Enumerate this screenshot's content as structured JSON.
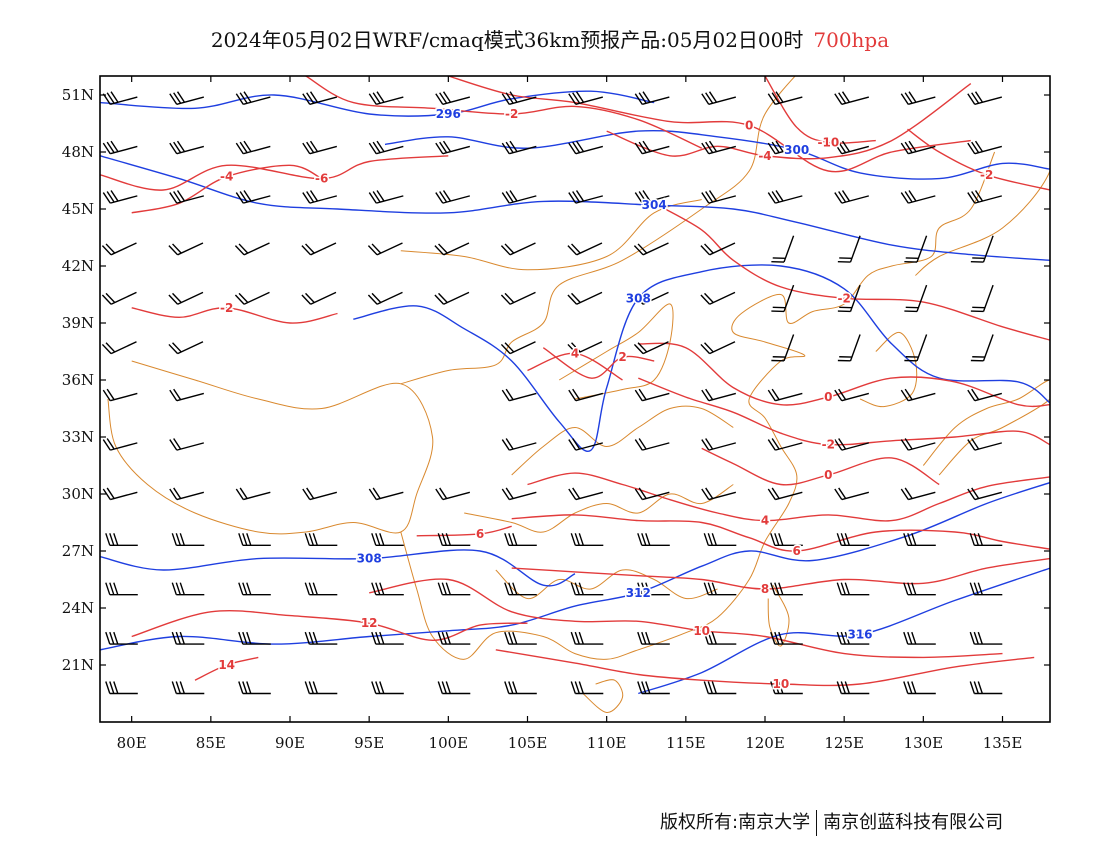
{
  "title": {
    "main": "2024年05月02日WRF/cmaq模式36km预报产品:05月02日00时",
    "level": "700hpa"
  },
  "colors": {
    "height_contour": "#1f3fe0",
    "temperature_contour": "#e23b3b",
    "boundary": "#d9892f",
    "wind_barb": "#000000",
    "frame": "#000000"
  },
  "map": {
    "projection": "lat-lon",
    "lon_range": [
      78,
      138
    ],
    "lat_range": [
      18,
      52
    ],
    "lon_ticks": [
      "80E",
      "85E",
      "90E",
      "95E",
      "100E",
      "105E",
      "110E",
      "115E",
      "120E",
      "125E",
      "130E",
      "135E"
    ],
    "lat_ticks": [
      "51N",
      "48N",
      "45N",
      "42N",
      "39N",
      "36N",
      "33N",
      "30N",
      "27N",
      "24N",
      "21N"
    ]
  },
  "height_contours": {
    "name": "geopotential height",
    "lines": [
      {
        "label": "296",
        "points": [
          [
            78,
            50.6
          ],
          [
            84,
            50.3
          ],
          [
            89,
            51.0
          ],
          [
            95,
            50.0
          ],
          [
            100,
            50.0
          ],
          [
            104,
            50.8
          ],
          [
            109,
            51.2
          ],
          [
            113,
            50.6
          ]
        ]
      },
      {
        "label": "300",
        "points": [
          [
            96,
            48.4
          ],
          [
            100,
            48.8
          ],
          [
            105,
            48.2
          ],
          [
            112,
            49.1
          ],
          [
            117,
            48.8
          ],
          [
            122,
            48.1
          ],
          [
            126,
            46.9
          ],
          [
            131,
            46.6
          ],
          [
            135,
            47.4
          ],
          [
            138,
            47.1
          ]
        ]
      },
      {
        "label": "304",
        "points": [
          [
            78,
            47.8
          ],
          [
            83,
            46.6
          ],
          [
            88,
            45.3
          ],
          [
            93,
            45.0
          ],
          [
            100,
            44.8
          ],
          [
            106,
            45.4
          ],
          [
            113,
            45.2
          ],
          [
            118,
            45.0
          ],
          [
            122,
            44.3
          ],
          [
            128,
            43.1
          ],
          [
            133,
            42.6
          ],
          [
            138,
            42.3
          ]
        ]
      },
      {
        "label": "308",
        "points": [
          [
            94,
            39.2
          ],
          [
            98,
            39.9
          ],
          [
            101,
            38.7
          ],
          [
            104,
            37.0
          ],
          [
            107,
            33.8
          ],
          [
            109,
            32.3
          ],
          [
            110,
            35.6
          ],
          [
            112,
            40.3
          ],
          [
            116,
            41.7
          ],
          [
            121,
            42.0
          ],
          [
            125,
            40.8
          ],
          [
            128,
            37.9
          ],
          [
            131,
            36.1
          ],
          [
            136,
            35.9
          ],
          [
            138,
            34.8
          ]
        ]
      },
      {
        "label": "308",
        "points": [
          [
            78,
            26.7
          ],
          [
            82,
            26.0
          ],
          [
            88,
            26.6
          ],
          [
            95,
            26.6
          ],
          [
            102,
            27.0
          ],
          [
            106,
            25.2
          ],
          [
            108,
            25.8
          ]
        ]
      },
      {
        "label": "312",
        "points": [
          [
            78,
            21.8
          ],
          [
            83,
            22.5
          ],
          [
            89,
            22.1
          ],
          [
            95,
            22.5
          ],
          [
            100,
            22.8
          ],
          [
            104,
            23.1
          ],
          [
            108,
            24.1
          ],
          [
            112,
            24.8
          ],
          [
            116,
            26.2
          ],
          [
            119,
            27.0
          ],
          [
            123,
            26.5
          ],
          [
            129,
            27.8
          ],
          [
            134,
            29.5
          ],
          [
            138,
            30.6
          ]
        ]
      },
      {
        "label": "316",
        "points": [
          [
            112,
            19.5
          ],
          [
            116,
            20.6
          ],
          [
            121,
            22.6
          ],
          [
            126,
            22.6
          ],
          [
            132,
            24.4
          ],
          [
            138,
            26.1
          ]
        ]
      }
    ]
  },
  "temperature_contours": {
    "name": "temperature",
    "lines": [
      {
        "label": "-10",
        "points": [
          [
            120,
            52
          ],
          [
            122,
            49.3
          ],
          [
            124,
            48.5
          ],
          [
            127,
            48.6
          ]
        ]
      },
      {
        "label": "-6",
        "points": [
          [
            78,
            46.8
          ],
          [
            82,
            46.0
          ],
          [
            86,
            47.3
          ],
          [
            92,
            46.6
          ],
          [
            95,
            47.5
          ],
          [
            100,
            47.8
          ]
        ]
      },
      {
        "label": "-4",
        "points": [
          [
            80,
            44.8
          ],
          [
            83,
            45.3
          ],
          [
            86,
            46.7
          ],
          [
            90,
            47.3
          ],
          [
            92,
            46.6
          ]
        ]
      },
      {
        "label": "-4",
        "points": [
          [
            110,
            49.1
          ],
          [
            114,
            47.8
          ],
          [
            117,
            48.3
          ],
          [
            120,
            47.8
          ],
          [
            124,
            47.7
          ],
          [
            128,
            48.6
          ],
          [
            133,
            51.6
          ]
        ]
      },
      {
        "label": "-2",
        "points": [
          [
            91,
            52
          ],
          [
            94,
            50.6
          ],
          [
            99,
            50.3
          ],
          [
            104,
            50.0
          ],
          [
            108,
            50.4
          ],
          [
            112,
            49.7
          ],
          [
            116,
            48.2
          ]
        ]
      },
      {
        "label": "-2",
        "points": [
          [
            129,
            49.2
          ],
          [
            131,
            48.0
          ],
          [
            134,
            46.8
          ],
          [
            138,
            46.0
          ]
        ]
      },
      {
        "label": "0",
        "points": [
          [
            100,
            52
          ],
          [
            104,
            51.0
          ],
          [
            108,
            50.6
          ],
          [
            114,
            49.6
          ],
          [
            119,
            49.4
          ],
          [
            124,
            47.0
          ],
          [
            128,
            48.0
          ],
          [
            133,
            48.6
          ]
        ]
      },
      {
        "label": "-2",
        "points": [
          [
            113,
            45.3
          ],
          [
            116,
            43.9
          ],
          [
            118,
            42.3
          ],
          [
            121,
            40.9
          ],
          [
            125,
            40.3
          ],
          [
            130,
            40.1
          ],
          [
            135,
            38.8
          ],
          [
            138,
            38.1
          ]
        ]
      },
      {
        "label": "-2",
        "points": [
          [
            80,
            39.8
          ],
          [
            83,
            39.3
          ],
          [
            86,
            39.8
          ],
          [
            90,
            39.0
          ],
          [
            93,
            39.5
          ]
        ]
      },
      {
        "label": "2",
        "points": [
          [
            106,
            37.7
          ],
          [
            109,
            36.1
          ],
          [
            111,
            37.2
          ],
          [
            113,
            37.0
          ]
        ]
      },
      {
        "label": "0",
        "points": [
          [
            112,
            37.9
          ],
          [
            115,
            37.7
          ],
          [
            118,
            35.6
          ],
          [
            121,
            34.7
          ],
          [
            124,
            35.1
          ],
          [
            128,
            36.1
          ],
          [
            132,
            35.9
          ],
          [
            136,
            34.7
          ],
          [
            138,
            34.7
          ]
        ]
      },
      {
        "label": "-2",
        "points": [
          [
            112,
            36.1
          ],
          [
            115,
            35.1
          ],
          [
            118,
            34.3
          ],
          [
            121,
            33.2
          ],
          [
            124,
            32.6
          ],
          [
            128,
            32.8
          ],
          [
            132,
            33.0
          ],
          [
            136,
            33.3
          ],
          [
            138,
            32.6
          ]
        ]
      },
      {
        "label": "0",
        "points": [
          [
            116,
            32.4
          ],
          [
            118,
            31.6
          ],
          [
            121,
            30.5
          ],
          [
            124,
            31.0
          ],
          [
            128,
            31.9
          ],
          [
            131,
            30.5
          ]
        ]
      },
      {
        "label": "4",
        "points": [
          [
            105,
            36.5
          ],
          [
            108,
            37.4
          ],
          [
            111,
            36.0
          ]
        ]
      },
      {
        "label": "4",
        "points": [
          [
            105,
            30.5
          ],
          [
            108,
            31.1
          ],
          [
            111,
            30.5
          ],
          [
            114,
            29.7
          ],
          [
            117,
            29.0
          ],
          [
            120,
            28.6
          ],
          [
            124,
            28.9
          ],
          [
            128,
            28.6
          ],
          [
            131,
            29.5
          ],
          [
            134,
            30.4
          ],
          [
            138,
            30.9
          ]
        ]
      },
      {
        "label": "6",
        "points": [
          [
            104,
            28.7
          ],
          [
            108,
            28.9
          ],
          [
            112,
            28.6
          ],
          [
            116,
            28.5
          ],
          [
            119,
            27.7
          ],
          [
            122,
            27.0
          ],
          [
            127,
            28.0
          ],
          [
            132,
            28.0
          ],
          [
            135,
            27.5
          ],
          [
            138,
            27.1
          ]
        ]
      },
      {
        "label": "6",
        "points": [
          [
            98,
            27.8
          ],
          [
            102,
            27.9
          ],
          [
            104,
            28.3
          ]
        ]
      },
      {
        "label": "8",
        "points": [
          [
            104,
            26.1
          ],
          [
            108,
            25.9
          ],
          [
            112,
            25.7
          ],
          [
            116,
            25.5
          ],
          [
            120,
            25.0
          ],
          [
            125,
            25.5
          ],
          [
            130,
            25.3
          ],
          [
            134,
            26.1
          ],
          [
            138,
            26.6
          ]
        ]
      },
      {
        "label": "10",
        "points": [
          [
            95,
            24.8
          ],
          [
            100,
            25.5
          ],
          [
            104,
            23.8
          ],
          [
            108,
            23.3
          ],
          [
            112,
            23.3
          ],
          [
            116,
            22.8
          ],
          [
            120,
            22.5
          ],
          [
            125,
            21.6
          ],
          [
            130,
            21.4
          ],
          [
            135,
            21.6
          ]
        ]
      },
      {
        "label": "12",
        "points": [
          [
            80,
            22.5
          ],
          [
            85,
            23.8
          ],
          [
            90,
            23.6
          ],
          [
            95,
            23.2
          ],
          [
            99,
            22.3
          ],
          [
            102,
            23.1
          ],
          [
            105,
            23.2
          ]
        ]
      },
      {
        "label": "10",
        "points": [
          [
            103,
            21.8
          ],
          [
            108,
            21.1
          ],
          [
            112,
            20.5
          ],
          [
            116,
            20.2
          ],
          [
            121,
            20.0
          ],
          [
            126,
            20.0
          ],
          [
            132,
            20.9
          ],
          [
            137,
            21.4
          ]
        ]
      },
      {
        "label": "14",
        "points": [
          [
            84,
            20.2
          ],
          [
            86,
            21.0
          ],
          [
            88,
            21.4
          ]
        ]
      }
    ]
  },
  "credit": {
    "owner_prefix": "版权所有:",
    "owner_1": "南京大学",
    "owner_2": "南京创蓝科技有限公司"
  }
}
